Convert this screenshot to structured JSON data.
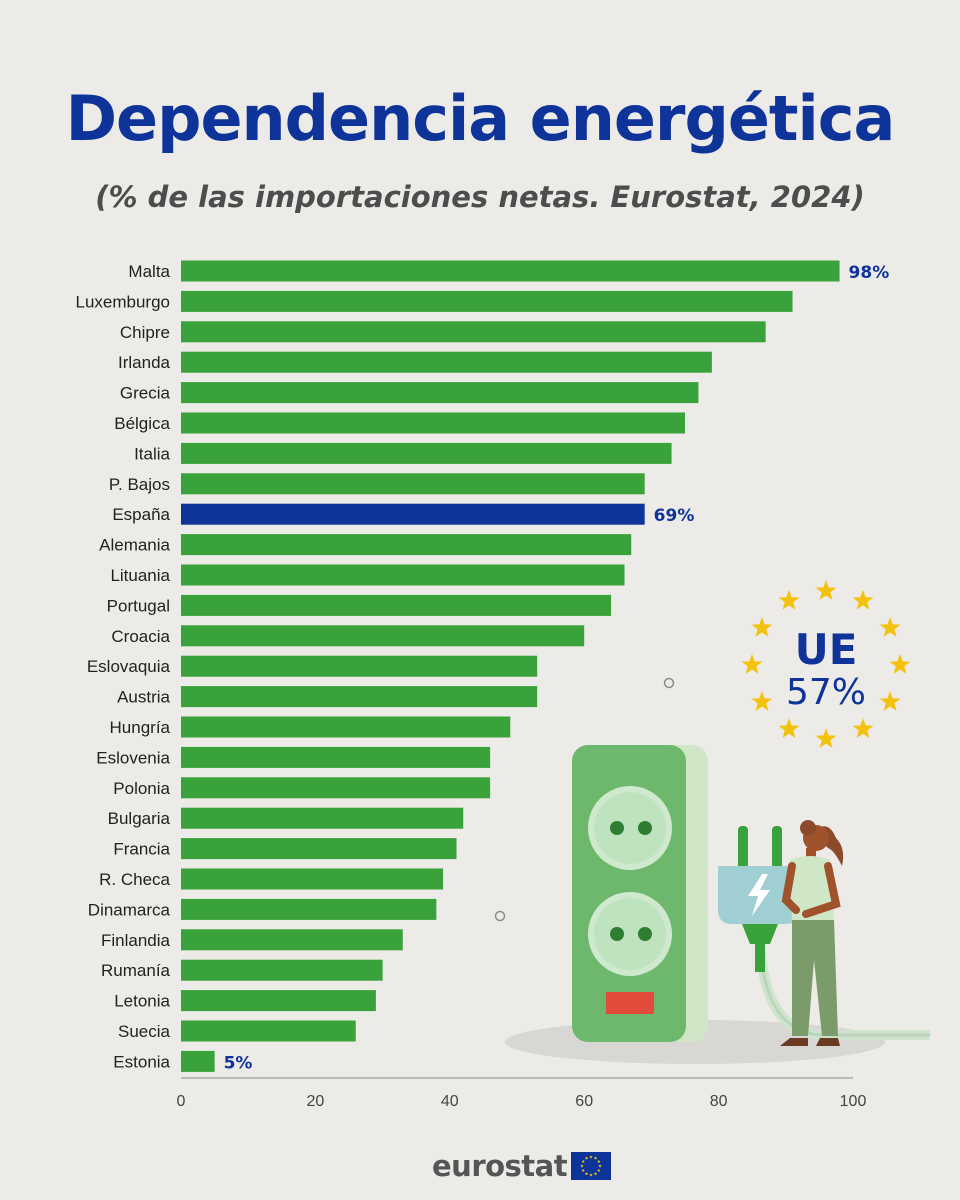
{
  "title": "Dependencia energética",
  "subtitle": "(% de las importaciones netas. Eurostat, 2024)",
  "colors": {
    "bar": "#3aa23a",
    "highlight": "#0e3399",
    "label": "#0e3399",
    "star": "#f4c20d"
  },
  "chart_data": {
    "type": "bar",
    "orientation": "horizontal",
    "categories": [
      "Malta",
      "Luxemburgo",
      "Chipre",
      "Irlanda",
      "Grecia",
      "Bélgica",
      "Italia",
      "P. Bajos",
      "España",
      "Alemania",
      "Lituania",
      "Portugal",
      "Croacia",
      "Eslovaquia",
      "Austria",
      "Hungría",
      "Eslovenia",
      "Polonia",
      "Bulgaria",
      "Francia",
      "R. Checa",
      "Dinamarca",
      "Finlandia",
      "Rumanía",
      "Letonia",
      "Suecia",
      "Estonia"
    ],
    "values": [
      98,
      91,
      87,
      79,
      77,
      75,
      73,
      69,
      69,
      67,
      66,
      64,
      60,
      53,
      53,
      49,
      46,
      46,
      42,
      41,
      39,
      38,
      33,
      30,
      29,
      26,
      5
    ],
    "highlight": "España",
    "data_labels": [
      {
        "category": "Malta",
        "text": "98%"
      },
      {
        "category": "España",
        "text": "69%"
      },
      {
        "category": "Estonia",
        "text": "5%"
      }
    ],
    "xlim": [
      0,
      100
    ],
    "xticks": [
      "0",
      "20",
      "40",
      "60",
      "80",
      "100"
    ],
    "grid": false
  },
  "eu_badge": {
    "label": "UE",
    "value": "57%"
  },
  "logo": {
    "text": "eurostat"
  },
  "illustration": {
    "icons": [
      "power-strip-icon",
      "plug-icon",
      "woman-icon",
      "lightning-icon"
    ]
  }
}
